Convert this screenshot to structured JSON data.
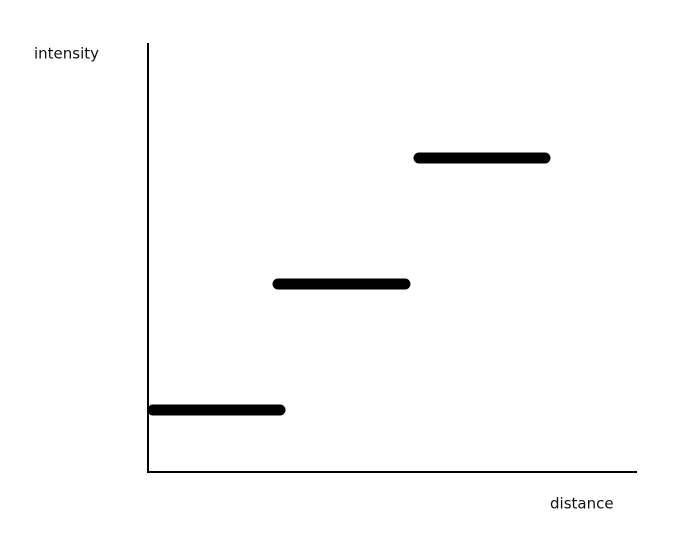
{
  "axes": {
    "y_label": "intensity",
    "x_label": "distance"
  }
}
